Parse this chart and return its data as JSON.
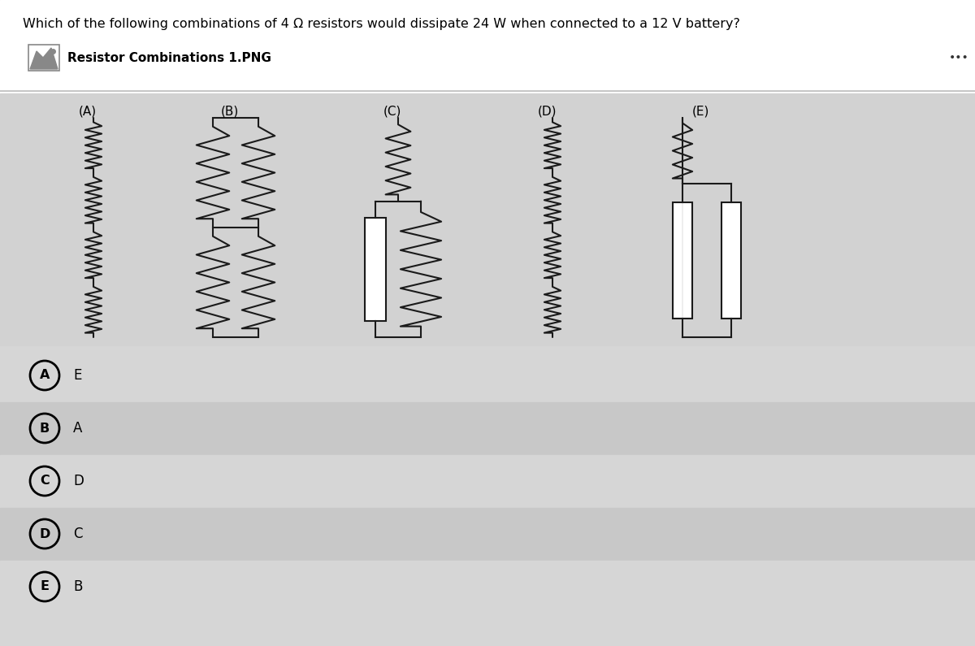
{
  "question": "Which of the following combinations of 4 Ω resistors would dissipate 24 W when connected to a 12 V battery?",
  "file_label": "Resistor Combinations 1.PNG",
  "circuit_labels": [
    "(A)",
    "(B)",
    "(C)",
    "(D)",
    "(E)"
  ],
  "answer_choices": [
    {
      "circle": "A",
      "text": "E"
    },
    {
      "circle": "B",
      "text": "A"
    },
    {
      "circle": "C",
      "text": "D"
    },
    {
      "circle": "D",
      "text": "C"
    },
    {
      "circle": "E",
      "text": "B"
    }
  ],
  "bg_color": "#d6d6d6",
  "header_bg": "#ffffff",
  "row_colors": [
    "#d6d6d6",
    "#c8c8c8",
    "#d6d6d6",
    "#c8c8c8",
    "#d6d6d6"
  ],
  "circuit_bg": "#d0d0d0",
  "line_color": "#1a1a1a",
  "zigzag_amplitude": 0.055,
  "zigzag_teeth": 7
}
